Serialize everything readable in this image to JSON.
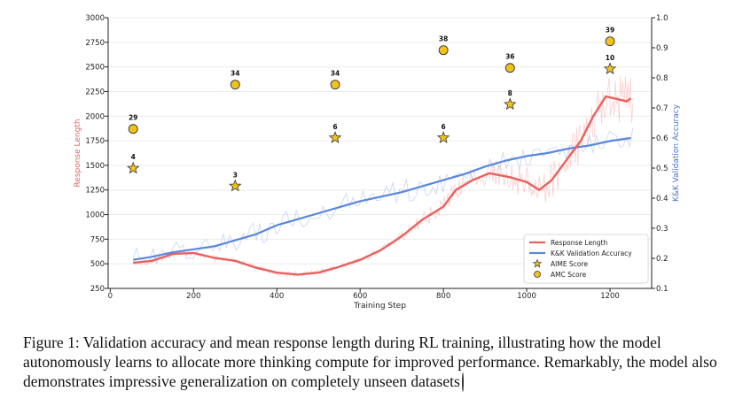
{
  "chart_data": {
    "type": "line",
    "title": "",
    "xlabel": "Training Step",
    "ylabel_left": "Response Length",
    "ylabel_right": "K&K Validation Accuracy",
    "xlim": [
      -5,
      1300
    ],
    "ylim_left": [
      250,
      3000
    ],
    "ylim_right": [
      0.1,
      1.0
    ],
    "x_ticks": [
      0,
      200,
      400,
      600,
      800,
      1000,
      1200
    ],
    "y_left_ticks": [
      250,
      500,
      750,
      1000,
      1250,
      1500,
      1750,
      2000,
      2250,
      2500,
      2750,
      3000
    ],
    "y_right_ticks": [
      0.1,
      0.2,
      0.3,
      0.4,
      0.5,
      0.6,
      0.7,
      0.8,
      0.9,
      1.0
    ],
    "grid": true,
    "legend_position": "lower-right",
    "series": [
      {
        "name": "Response Length",
        "axis": "left",
        "color": "#e8615f",
        "x": [
          55,
          100,
          150,
          200,
          250,
          300,
          350,
          400,
          450,
          500,
          550,
          600,
          650,
          700,
          750,
          800,
          830,
          870,
          910,
          960,
          1000,
          1030,
          1060,
          1100,
          1130,
          1160,
          1190,
          1210,
          1240,
          1250
        ],
        "values": [
          510,
          530,
          600,
          610,
          560,
          530,
          460,
          410,
          390,
          410,
          470,
          540,
          640,
          780,
          950,
          1080,
          1250,
          1350,
          1420,
          1380,
          1330,
          1250,
          1350,
          1580,
          1750,
          2000,
          2200,
          2180,
          2150,
          2180
        ]
      },
      {
        "name": "K&K Validation Accuracy",
        "axis": "right",
        "color": "#5b86dd",
        "x": [
          55,
          100,
          150,
          200,
          250,
          300,
          350,
          400,
          450,
          500,
          550,
          600,
          650,
          700,
          750,
          800,
          850,
          900,
          950,
          1000,
          1050,
          1100,
          1150,
          1200,
          1250
        ],
        "values": [
          0.195,
          0.205,
          0.22,
          0.23,
          0.24,
          0.26,
          0.28,
          0.31,
          0.33,
          0.35,
          0.37,
          0.39,
          0.405,
          0.42,
          0.44,
          0.46,
          0.48,
          0.505,
          0.525,
          0.54,
          0.55,
          0.565,
          0.575,
          0.59,
          0.6
        ]
      }
    ],
    "markers": [
      {
        "name": "AIME Score",
        "shape": "star",
        "color": "#f2c21c",
        "x": [
          55,
          300,
          540,
          800,
          960,
          1200
        ],
        "y": [
          1470,
          1290,
          1780,
          1780,
          2120,
          2480
        ],
        "labels": [
          "4",
          "3",
          "6",
          "6",
          "8",
          "10"
        ]
      },
      {
        "name": "AMC Score",
        "shape": "circle",
        "color": "#f2c21c",
        "x": [
          55,
          300,
          540,
          800,
          960,
          1200
        ],
        "y": [
          1870,
          2320,
          2320,
          2670,
          2490,
          2760
        ],
        "labels": [
          "29",
          "34",
          "34",
          "38",
          "36",
          "39"
        ]
      }
    ],
    "legend": [
      "Response Length",
      "K&K Validation Accuracy",
      "AIME Score",
      "AMC Score"
    ]
  },
  "caption": {
    "label": "Figure 1:",
    "text": "Validation accuracy and mean response length during RL training, illustrating how the model autonomously learns to allocate more thinking compute for improved performance. Remarkably, the model also demonstrates impressive generalization on completely unseen datasets"
  }
}
